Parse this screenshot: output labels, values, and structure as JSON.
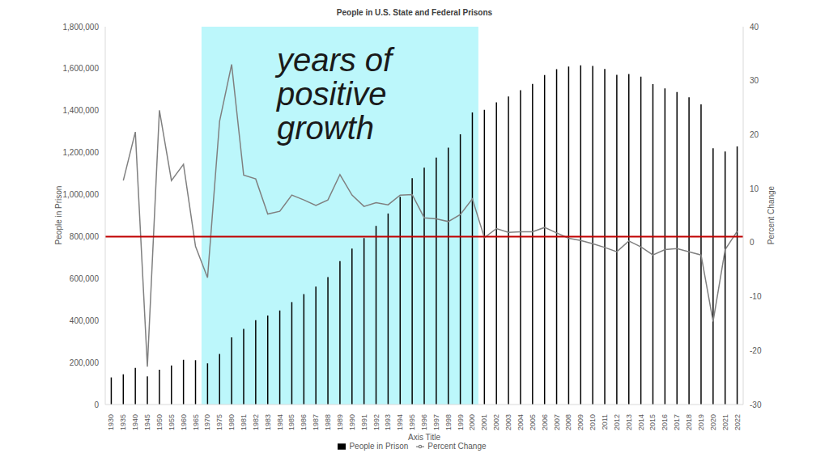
{
  "chart_data": {
    "type": "bar",
    "title": "People in U.S. State and Federal Prisons",
    "x_label": "Axis Title",
    "y_label": "People in Prison",
    "y2_label": "Percent Change",
    "categories": [
      "1930",
      "1935",
      "1940",
      "1945",
      "1950",
      "1955",
      "1960",
      "1965",
      "1970",
      "1975",
      "1980",
      "1981",
      "1982",
      "1983",
      "1984",
      "1985",
      "1986",
      "1987",
      "1988",
      "1989",
      "1990",
      "1991",
      "1992",
      "1993",
      "1994",
      "1995",
      "1996",
      "1997",
      "1998",
      "1999",
      "2000",
      "2001",
      "2002",
      "2003",
      "2004",
      "2005",
      "2006",
      "2007",
      "2008",
      "2009",
      "2010",
      "2011",
      "2012",
      "2013",
      "2014",
      "2015",
      "2016",
      "2017",
      "2018",
      "2019",
      "2020",
      "2021",
      "2022"
    ],
    "series": [
      {
        "name": "People in Prison",
        "type": "bar",
        "color": "#000000",
        "values": [
          129000,
          144000,
          174000,
          134000,
          166000,
          186000,
          213000,
          211000,
          196000,
          241000,
          320000,
          360000,
          402000,
          424000,
          448000,
          488000,
          526000,
          562000,
          607000,
          683000,
          743000,
          793000,
          851000,
          910000,
          990000,
          1078000,
          1128000,
          1177000,
          1224000,
          1287000,
          1391000,
          1404000,
          1440000,
          1468000,
          1497000,
          1527000,
          1570000,
          1598000,
          1610000,
          1616000,
          1613000,
          1599000,
          1571000,
          1575000,
          1562000,
          1526000,
          1506000,
          1489000,
          1464000,
          1430000,
          1221000,
          1205000,
          1230000
        ]
      },
      {
        "name": "Percent Change",
        "type": "line",
        "color": "#808080",
        "axis": "y2",
        "values": [
          null,
          11.5,
          20.5,
          -23,
          24.5,
          11.5,
          14.5,
          -0.7,
          -6.5,
          22.5,
          33,
          12.5,
          11.8,
          5.3,
          5.8,
          8.8,
          7.9,
          6.9,
          7.9,
          12.6,
          8.8,
          6.7,
          7.4,
          7.0,
          8.8,
          8.9,
          4.6,
          4.4,
          3.9,
          5.2,
          8.1,
          0.9,
          2.6,
          1.9,
          2.0,
          2.0,
          2.8,
          1.8,
          0.8,
          0.4,
          -0.2,
          -0.9,
          -1.7,
          0.3,
          -0.8,
          -2.3,
          -1.3,
          -1.1,
          -1.7,
          -2.3,
          -14.6,
          -1.3,
          2.1
        ]
      }
    ],
    "ylim": [
      0,
      1800000
    ],
    "yticks": [
      0,
      {
        "value": 200000,
        "label": "200,000"
      },
      {
        "value": 400000,
        "label": "400,000"
      },
      {
        "value": 600000,
        "label": "600,000"
      },
      {
        "value": 800000,
        "label": "800,000"
      },
      {
        "value": 1000000,
        "label": "1,000,000"
      },
      {
        "value": 1200000,
        "label": "1,200,000"
      },
      {
        "value": 1400000,
        "label": "1,400,000"
      },
      {
        "value": 1600000,
        "label": "1,600,000"
      },
      {
        "value": 1800000,
        "label": "1,800,000"
      }
    ],
    "y2lim": [
      -30,
      40
    ],
    "y2ticks": [
      -30,
      -20,
      -10,
      0,
      10,
      20,
      30,
      40
    ],
    "reference_line": {
      "value": 800000,
      "color": "#c00000"
    },
    "highlight": {
      "from": "1970",
      "to": "2000",
      "label": "years of\npositive\ngrowth",
      "color": "#9ff3f9"
    },
    "legend": "bottom",
    "grid": false
  }
}
